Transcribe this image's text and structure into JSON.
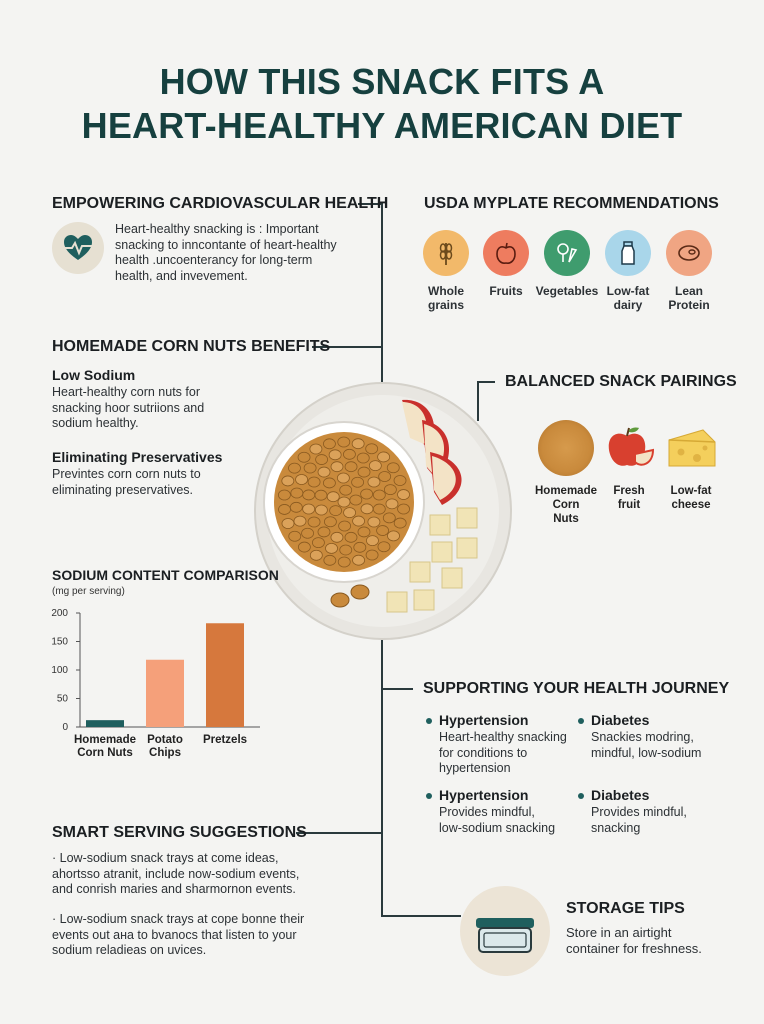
{
  "title_line1": "HOW THIS SNACK FITS A",
  "title_line2": "HEART-HEALTHY AMERICAN DIET",
  "cardio": {
    "heading": "EMPOWERING CARDIOVASCULAR HEALTH",
    "text": [
      "Heart-healthy snacking is : Important",
      "snacking to inncontante of heart-healthy",
      "health .uncoenterancy for long-term",
      "health, and invevement."
    ],
    "icon": "heart-pulse-icon"
  },
  "myplate": {
    "heading": "USDA MYPLATE RECOMMENDATIONS",
    "items": [
      {
        "label1": "Whole",
        "label2": "grains",
        "color": "#f2b96a",
        "icon": "wheat-icon"
      },
      {
        "label1": "Fruits",
        "label2": "",
        "color": "#ee7c5f",
        "icon": "apple-icon"
      },
      {
        "label1": "Vegetables",
        "label2": "",
        "color": "#3f9c6e",
        "icon": "vegetables-icon"
      },
      {
        "label1": "Low-fat",
        "label2": "dairy",
        "color": "#a9d6ea",
        "icon": "milk-bottle-icon"
      },
      {
        "label1": "Lean",
        "label2": "Protein",
        "color": "#f0a583",
        "icon": "meat-icon"
      }
    ]
  },
  "benefits": {
    "heading": "HOMEMADE CORN NUTS BENEFITS",
    "sub1": "Low Sodium",
    "text1": [
      "Heart-healthy corn nuts for",
      "snacking hoor sutriions and",
      "sodium healthy."
    ],
    "sub2": "Eliminating Preservatives",
    "text2": [
      "Previntes corn corn nuts to",
      "eliminating preservatives."
    ]
  },
  "pairings": {
    "heading": "BALANCED SNACK PAIRINGS",
    "items": [
      {
        "label1": "Homemade",
        "label2": "Corn",
        "label3": "Nuts",
        "icon": "corn-nuts-icon"
      },
      {
        "label1": "Fresh",
        "label2": "fruit",
        "label3": "",
        "icon": "apple-icon"
      },
      {
        "label1": "Low-fat",
        "label2": "cheese",
        "label3": "",
        "icon": "cheese-icon"
      }
    ]
  },
  "chart_data": {
    "type": "bar",
    "title": "SODIUM CONTENT COMPARISON",
    "subtitle": "(mg per serving)",
    "categories": [
      "Homemade Corn Nuts",
      "Potato Chips",
      "Pretzels"
    ],
    "category_lines": [
      [
        "Homemade",
        "Corn Nuts"
      ],
      [
        "Potato",
        "Chips"
      ],
      [
        "Pretzels"
      ]
    ],
    "values": [
      12,
      118,
      182
    ],
    "colors": [
      "#1f5f5e",
      "#f5a07a",
      "#d6783d"
    ],
    "yticks": [
      "200",
      "150",
      "100",
      "50",
      "0"
    ],
    "ylim": [
      0,
      200
    ],
    "grid": false
  },
  "journey": {
    "heading": "SUPPORTING YOUR HEALTH JOURNEY",
    "items": [
      {
        "title": "Hypertension",
        "text": [
          "Heart-healthy snacking",
          "for conditions to",
          "hypertension"
        ]
      },
      {
        "title": "Diabetes",
        "text": [
          "Snackies modring,",
          "mindful, low-sodium"
        ]
      },
      {
        "title": "Hypertension",
        "text": [
          "Provides mindful,",
          "low-sodium snacking"
        ]
      },
      {
        "title": "Diabetes",
        "text": [
          "Provides mindful,",
          "snacking"
        ]
      }
    ]
  },
  "serving": {
    "heading": "SMART SERVING SUGGESTIONS",
    "p1": [
      "· Low-sodium snack trays at come ideas,",
      "ahortsso atranit, include now-sodium events,",
      "and conrish maries and sharmornon events."
    ],
    "p2": [
      "· Low-sodium snack trays at cope bonne their",
      "events out ана to bvanocs that listen to your",
      "sodium reladieas on uvices."
    ]
  },
  "storage": {
    "heading": "STORAGE TIPS",
    "text": [
      "Store in an airtight",
      "container for freshness."
    ],
    "icon": "container-icon"
  }
}
